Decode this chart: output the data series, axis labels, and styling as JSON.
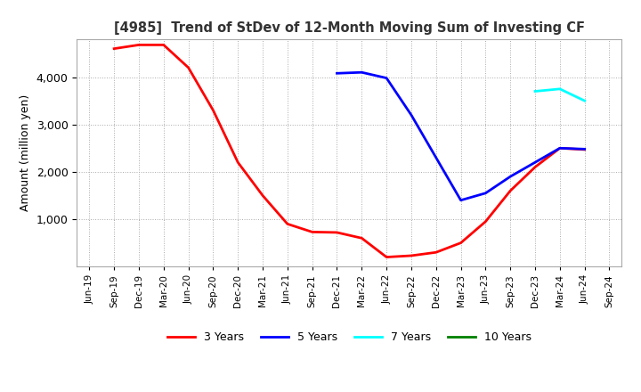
{
  "title": "[4985]  Trend of StDev of 12-Month Moving Sum of Investing CF",
  "ylabel": "Amount (million yen)",
  "background_color": "#ffffff",
  "grid_color": "#aaaaaa",
  "ylim": [
    0,
    4800
  ],
  "yticks": [
    1000,
    2000,
    3000,
    4000
  ],
  "series": {
    "3 Years": {
      "color": "red",
      "x": [
        "Sep-19",
        "Dec-19",
        "Mar-20",
        "Jun-20",
        "Sep-20",
        "Dec-20",
        "Mar-21",
        "Jun-21",
        "Sep-21",
        "Dec-21",
        "Mar-22",
        "Jun-22",
        "Sep-22",
        "Dec-22",
        "Mar-23",
        "Jun-23",
        "Sep-23",
        "Dec-23",
        "Mar-24",
        "Jun-24"
      ],
      "y": [
        4600,
        4680,
        4680,
        4200,
        3300,
        2200,
        1500,
        900,
        730,
        720,
        600,
        200,
        230,
        300,
        500,
        950,
        1600,
        2100,
        2500,
        2470
      ]
    },
    "5 Years": {
      "color": "blue",
      "x": [
        "Dec-21",
        "Mar-22",
        "Jun-22",
        "Sep-22",
        "Dec-22",
        "Mar-23",
        "Jun-23",
        "Sep-23",
        "Dec-23",
        "Mar-24",
        "Jun-24"
      ],
      "y": [
        4080,
        4100,
        3980,
        3200,
        2300,
        1400,
        1550,
        1900,
        2200,
        2500,
        2480
      ]
    },
    "7 Years": {
      "color": "cyan",
      "x": [
        "Dec-23",
        "Mar-24",
        "Jun-24"
      ],
      "y": [
        3700,
        3750,
        3500
      ]
    },
    "10 Years": {
      "color": "green",
      "x": [],
      "y": []
    }
  },
  "xticks": [
    "Jun-19",
    "Sep-19",
    "Dec-19",
    "Mar-20",
    "Jun-20",
    "Sep-20",
    "Dec-20",
    "Mar-21",
    "Jun-21",
    "Sep-21",
    "Dec-21",
    "Mar-22",
    "Jun-22",
    "Sep-22",
    "Dec-22",
    "Mar-23",
    "Jun-23",
    "Sep-23",
    "Dec-23",
    "Mar-24",
    "Jun-24",
    "Sep-24"
  ]
}
